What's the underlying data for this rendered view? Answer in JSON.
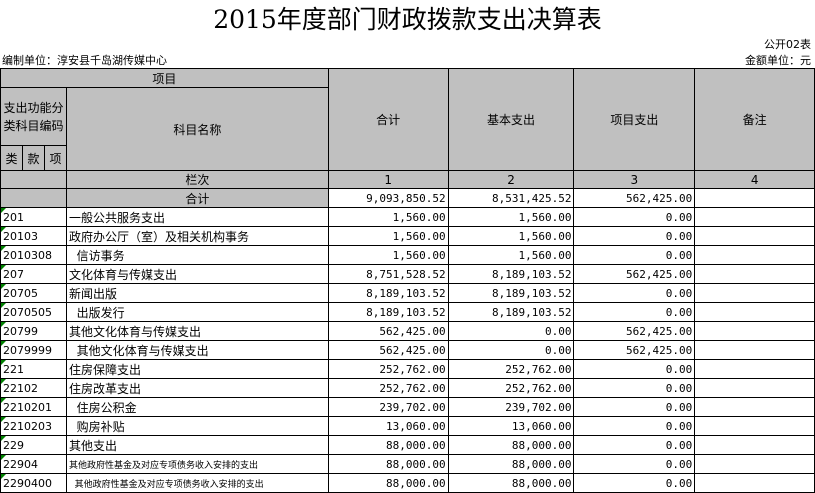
{
  "title": "2015年度部门财政拨款支出决算表",
  "form_no": "公开02表",
  "unit_label": "编制单位：淳安县千岛湖传媒中心",
  "amount_unit": "金额单位：元",
  "header": {
    "item": "项目",
    "func_code": "支出功能分类科目编码",
    "subject_name": "科目名称",
    "lei": "类",
    "kuan": "款",
    "xiang": "项",
    "col_total": "合计",
    "col_basic": "基本支出",
    "col_project": "项目支出",
    "col_note": "备注",
    "row_label": "栏次",
    "idx1": "1",
    "idx2": "2",
    "idx3": "3",
    "idx4": "4",
    "total_label": "合计"
  },
  "total_row": {
    "total": "9,093,850.52",
    "basic": "8,531,425.52",
    "project": "562,425.00"
  },
  "rows": [
    {
      "code": "201",
      "name": "一般公共服务支出",
      "total": "1,560.00",
      "basic": "1,560.00",
      "project": "0.00"
    },
    {
      "code": "20103",
      "name": "政府办公厅（室）及相关机构事务",
      "total": "1,560.00",
      "basic": "1,560.00",
      "project": "0.00"
    },
    {
      "code": "2010308",
      "name": "  信访事务",
      "total": "1,560.00",
      "basic": "1,560.00",
      "project": "0.00"
    },
    {
      "code": "207",
      "name": "文化体育与传媒支出",
      "total": "8,751,528.52",
      "basic": "8,189,103.52",
      "project": "562,425.00"
    },
    {
      "code": "20705",
      "name": "新闻出版",
      "total": "8,189,103.52",
      "basic": "8,189,103.52",
      "project": "0.00"
    },
    {
      "code": "2070505",
      "name": "  出版发行",
      "total": "8,189,103.52",
      "basic": "8,189,103.52",
      "project": "0.00"
    },
    {
      "code": "20799",
      "name": "其他文化体育与传媒支出",
      "total": "562,425.00",
      "basic": "0.00",
      "project": "562,425.00"
    },
    {
      "code": "2079999",
      "name": "  其他文化体育与传媒支出",
      "total": "562,425.00",
      "basic": "0.00",
      "project": "562,425.00"
    },
    {
      "code": "221",
      "name": "住房保障支出",
      "total": "252,762.00",
      "basic": "252,762.00",
      "project": "0.00"
    },
    {
      "code": "22102",
      "name": "住房改革支出",
      "total": "252,762.00",
      "basic": "252,762.00",
      "project": "0.00"
    },
    {
      "code": "2210201",
      "name": "  住房公积金",
      "total": "239,702.00",
      "basic": "239,702.00",
      "project": "0.00"
    },
    {
      "code": "2210203",
      "name": "  购房补贴",
      "total": "13,060.00",
      "basic": "13,060.00",
      "project": "0.00"
    },
    {
      "code": "229",
      "name": "其他支出",
      "total": "88,000.00",
      "basic": "88,000.00",
      "project": "0.00"
    },
    {
      "code": "22904",
      "name": "其他政府性基金及对应专项债务收入安排的支出",
      "total": "88,000.00",
      "basic": "88,000.00",
      "project": "0.00"
    },
    {
      "code": "2290400",
      "name": "  其他政府性基金及对应专项债务收入安排的支出",
      "total": "88,000.00",
      "basic": "88,000.00",
      "project": "0.00"
    }
  ]
}
